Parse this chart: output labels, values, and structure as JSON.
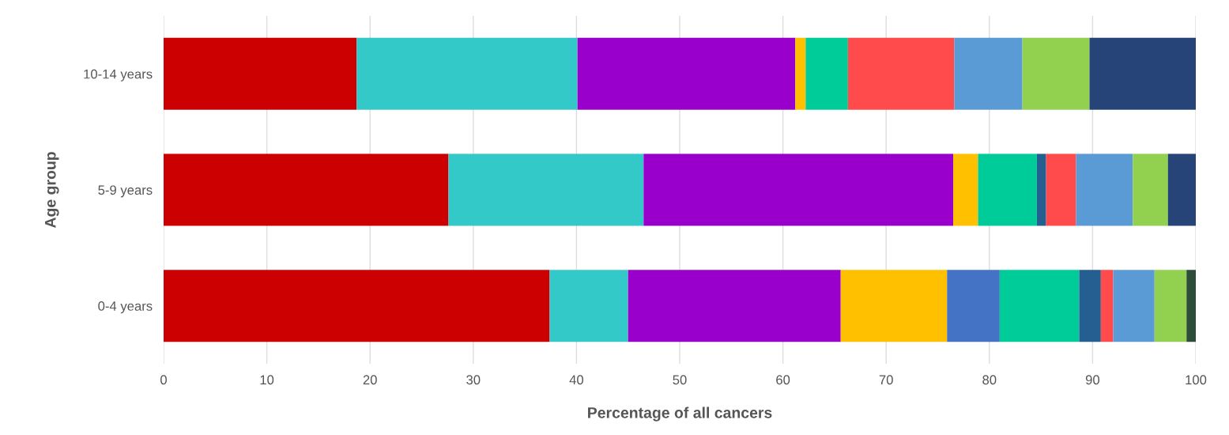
{
  "chart_data": {
    "type": "bar",
    "orientation": "horizontal",
    "stacked": true,
    "xlabel": "Percentage of all cancers",
    "ylabel": "Age group",
    "categories": [
      "10-14 years",
      "5-9 years",
      "0-4 years"
    ],
    "series": [
      {
        "color": "#cc0000",
        "values": [
          18.7,
          27.6,
          37.4
        ]
      },
      {
        "color": "#33c9c9",
        "values": [
          21.4,
          18.9,
          7.6
        ]
      },
      {
        "color": "#9900cc",
        "values": [
          21.1,
          30.0,
          20.6
        ]
      },
      {
        "color": "#ffc000",
        "values": [
          1.0,
          2.4,
          10.3
        ]
      },
      {
        "color": "#4472c4",
        "values": [
          null,
          null,
          5.1
        ]
      },
      {
        "color": "#00cc99",
        "values": [
          4.1,
          5.7,
          7.7
        ]
      },
      {
        "color": "#255e91",
        "values": [
          null,
          0.9,
          2.1
        ]
      },
      {
        "color": "#ff4b4b",
        "values": [
          10.3,
          2.9,
          1.2
        ]
      },
      {
        "color": "#5b9bd5",
        "values": [
          6.6,
          5.5,
          4.0
        ]
      },
      {
        "color": "#92d050",
        "values": [
          6.5,
          3.4,
          3.1
        ]
      },
      {
        "color": "#264478",
        "values": [
          10.3,
          2.7,
          null
        ]
      },
      {
        "color": "#2d4d3a",
        "values": [
          null,
          null,
          0.9
        ]
      }
    ],
    "xlim": [
      0,
      100
    ],
    "xticks": [
      0,
      10,
      20,
      30,
      40,
      50,
      60,
      70,
      80,
      90,
      100
    ],
    "grid": "x",
    "legend": false
  }
}
